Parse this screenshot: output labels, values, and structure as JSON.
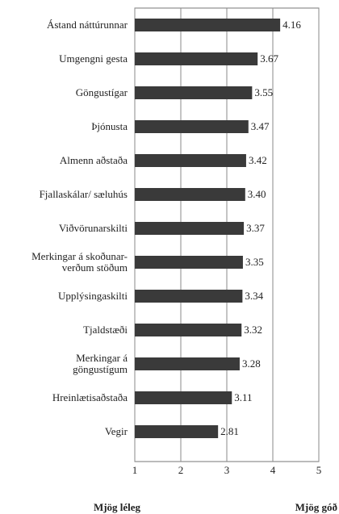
{
  "chart_data": {
    "type": "bar",
    "orientation": "horizontal",
    "categories": [
      "Ástand náttúrunnar",
      "Umgengni gesta",
      "Göngustígar",
      "Þjónusta",
      "Almenn aðstaða",
      "Fjallaskálar/ sæluhús",
      "Viðvörunarskilti",
      "Merkingar á skoðunar-\nverðum stöðum",
      "Upplýsingaskilti",
      "Tjaldstæði",
      "Merkingar á\ngöngustígum",
      "Hreinlætisaðstaða",
      "Vegir"
    ],
    "values": [
      4.16,
      3.67,
      3.55,
      3.47,
      3.42,
      3.4,
      3.37,
      3.35,
      3.34,
      3.32,
      3.28,
      3.11,
      2.81
    ],
    "value_labels": [
      "4.16",
      "3.67",
      "3.55",
      "3.47",
      "3.42",
      "3.40",
      "3.37",
      "3.35",
      "3.34",
      "3.32",
      "3.28",
      "3.11",
      "2.81"
    ],
    "color": "#3a3a3a",
    "xlim": [
      1,
      5
    ],
    "xticks": [
      1,
      2,
      3,
      4,
      5
    ],
    "grid": true,
    "x_low_label": "Mjög léleg",
    "x_high_label": "Mjög góð"
  }
}
